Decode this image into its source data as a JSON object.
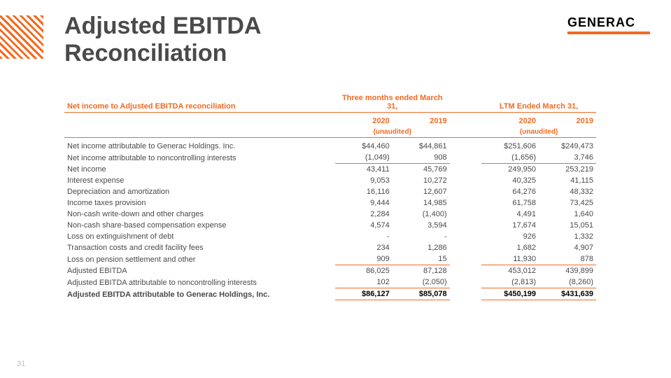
{
  "header": {
    "brand": "GENERAC",
    "title_line1": "Adjusted EBITDA",
    "title_line2": "Reconciliation"
  },
  "footer": {
    "page": "31"
  },
  "colors": {
    "accent": "#f26a21",
    "text": "#4a4a4a",
    "muted": "#bfbfbf",
    "background": "#ffffff"
  },
  "table": {
    "section_heading": "Net income to Adjusted EBITDA reconciliation",
    "period_group_1": "Three months ended March 31,",
    "period_group_2": "LTM Ended March 31,",
    "year_a": "2020",
    "year_b": "2019",
    "unaudited": "(unaudited)",
    "columns": [
      "label",
      "q_2020",
      "q_2019",
      "ltm_2020",
      "ltm_2019"
    ],
    "rows": [
      {
        "label": "Net income attributable to Generac Holdings. Inc.",
        "vals": [
          "$44,460",
          "$44,861",
          "$251,606",
          "$249,473"
        ]
      },
      {
        "label": "Net income attributable to noncontrolling interests",
        "vals": [
          "(1,049)",
          "908",
          "(1,656)",
          "3,746"
        ],
        "rule_under": true
      },
      {
        "label": "Net income",
        "vals": [
          "43,411",
          "45,769",
          "249,950",
          "253,219"
        ]
      },
      {
        "label": "Interest expense",
        "vals": [
          "9,053",
          "10,272",
          "40,325",
          "41,115"
        ]
      },
      {
        "label": "Depreciation and amortization",
        "vals": [
          "16,116",
          "12,607",
          "64,276",
          "48,332"
        ]
      },
      {
        "label": "Income taxes provision",
        "vals": [
          "9,444",
          "14,985",
          "61,758",
          "73,425"
        ]
      },
      {
        "label": "Non-cash write-down and other charges",
        "vals": [
          "2,284",
          "(1,400)",
          "4,491",
          "1,640"
        ]
      },
      {
        "label": "Non-cash share-based compensation expense",
        "vals": [
          "4,574",
          "3,594",
          "17,674",
          "15,051"
        ]
      },
      {
        "label": "Loss on extinguishment of debt",
        "vals": [
          "-",
          "-",
          "926",
          "1,332"
        ]
      },
      {
        "label": "Transaction costs and credit facility fees",
        "vals": [
          "234",
          "1,286",
          "1,682",
          "4,907"
        ]
      },
      {
        "label": "Loss on pension settlement and other",
        "vals": [
          "909",
          "15",
          "11,930",
          "878"
        ],
        "rule_under": true
      },
      {
        "label": "Adjusted EBITDA",
        "vals": [
          "86,025",
          "87,128",
          "453,012",
          "439,899"
        ]
      },
      {
        "label": "Adjusted EBITDA attributable to noncontrolling interests",
        "vals": [
          "102",
          "(2,050)",
          "(2,813)",
          "(8,260)"
        ],
        "rule_under": true
      },
      {
        "label": "Adjusted EBITDA attributable to Generac Holdings, Inc.",
        "vals": [
          "$86,127",
          "$85,078",
          "$450,199",
          "$431,639"
        ],
        "bold": true,
        "final": true
      }
    ]
  }
}
